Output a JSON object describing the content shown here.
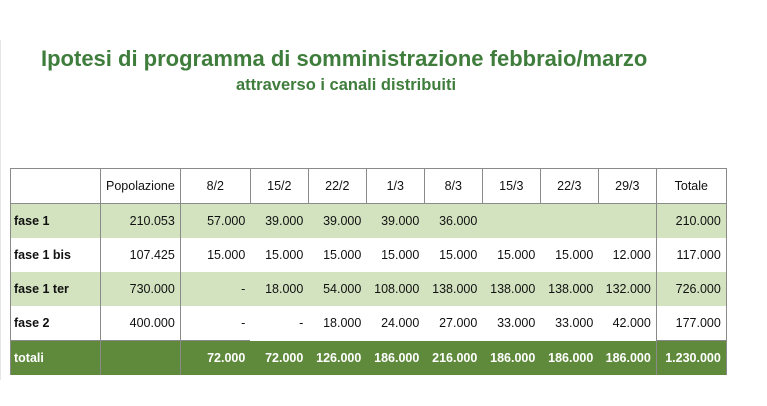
{
  "title": "Ipotesi di programma di somministrazione febbraio/marzo",
  "subtitle": "attraverso i canali distribuiti",
  "table": {
    "headers": [
      "",
      "Popolazione",
      "8/2",
      "15/2",
      "22/2",
      "1/3",
      "8/3",
      "15/3",
      "22/3",
      "29/3",
      "Totale"
    ],
    "rows": [
      [
        "fase 1",
        "210.053",
        "57.000",
        "39.000",
        "39.000",
        "39.000",
        "36.000",
        "",
        "",
        "",
        "210.000"
      ],
      [
        "fase 1 bis",
        "107.425",
        "15.000",
        "15.000",
        "15.000",
        "15.000",
        "15.000",
        "15.000",
        "15.000",
        "12.000",
        "117.000"
      ],
      [
        "fase 1 ter",
        "730.000",
        "-",
        "18.000",
        "54.000",
        "108.000",
        "138.000",
        "138.000",
        "138.000",
        "132.000",
        "726.000"
      ],
      [
        "fase 2",
        "400.000",
        "-",
        "-",
        "18.000",
        "24.000",
        "27.000",
        "33.000",
        "33.000",
        "42.000",
        "177.000"
      ]
    ],
    "totals": [
      "totali",
      "",
      "72.000",
      "72.000",
      "126.000",
      "186.000",
      "216.000",
      "186.000",
      "186.000",
      "186.000",
      "1.230.000"
    ]
  },
  "colors": {
    "title": "#3f7d3c",
    "row_green": "#d3e3c0",
    "total_row": "#5f8a3c"
  }
}
